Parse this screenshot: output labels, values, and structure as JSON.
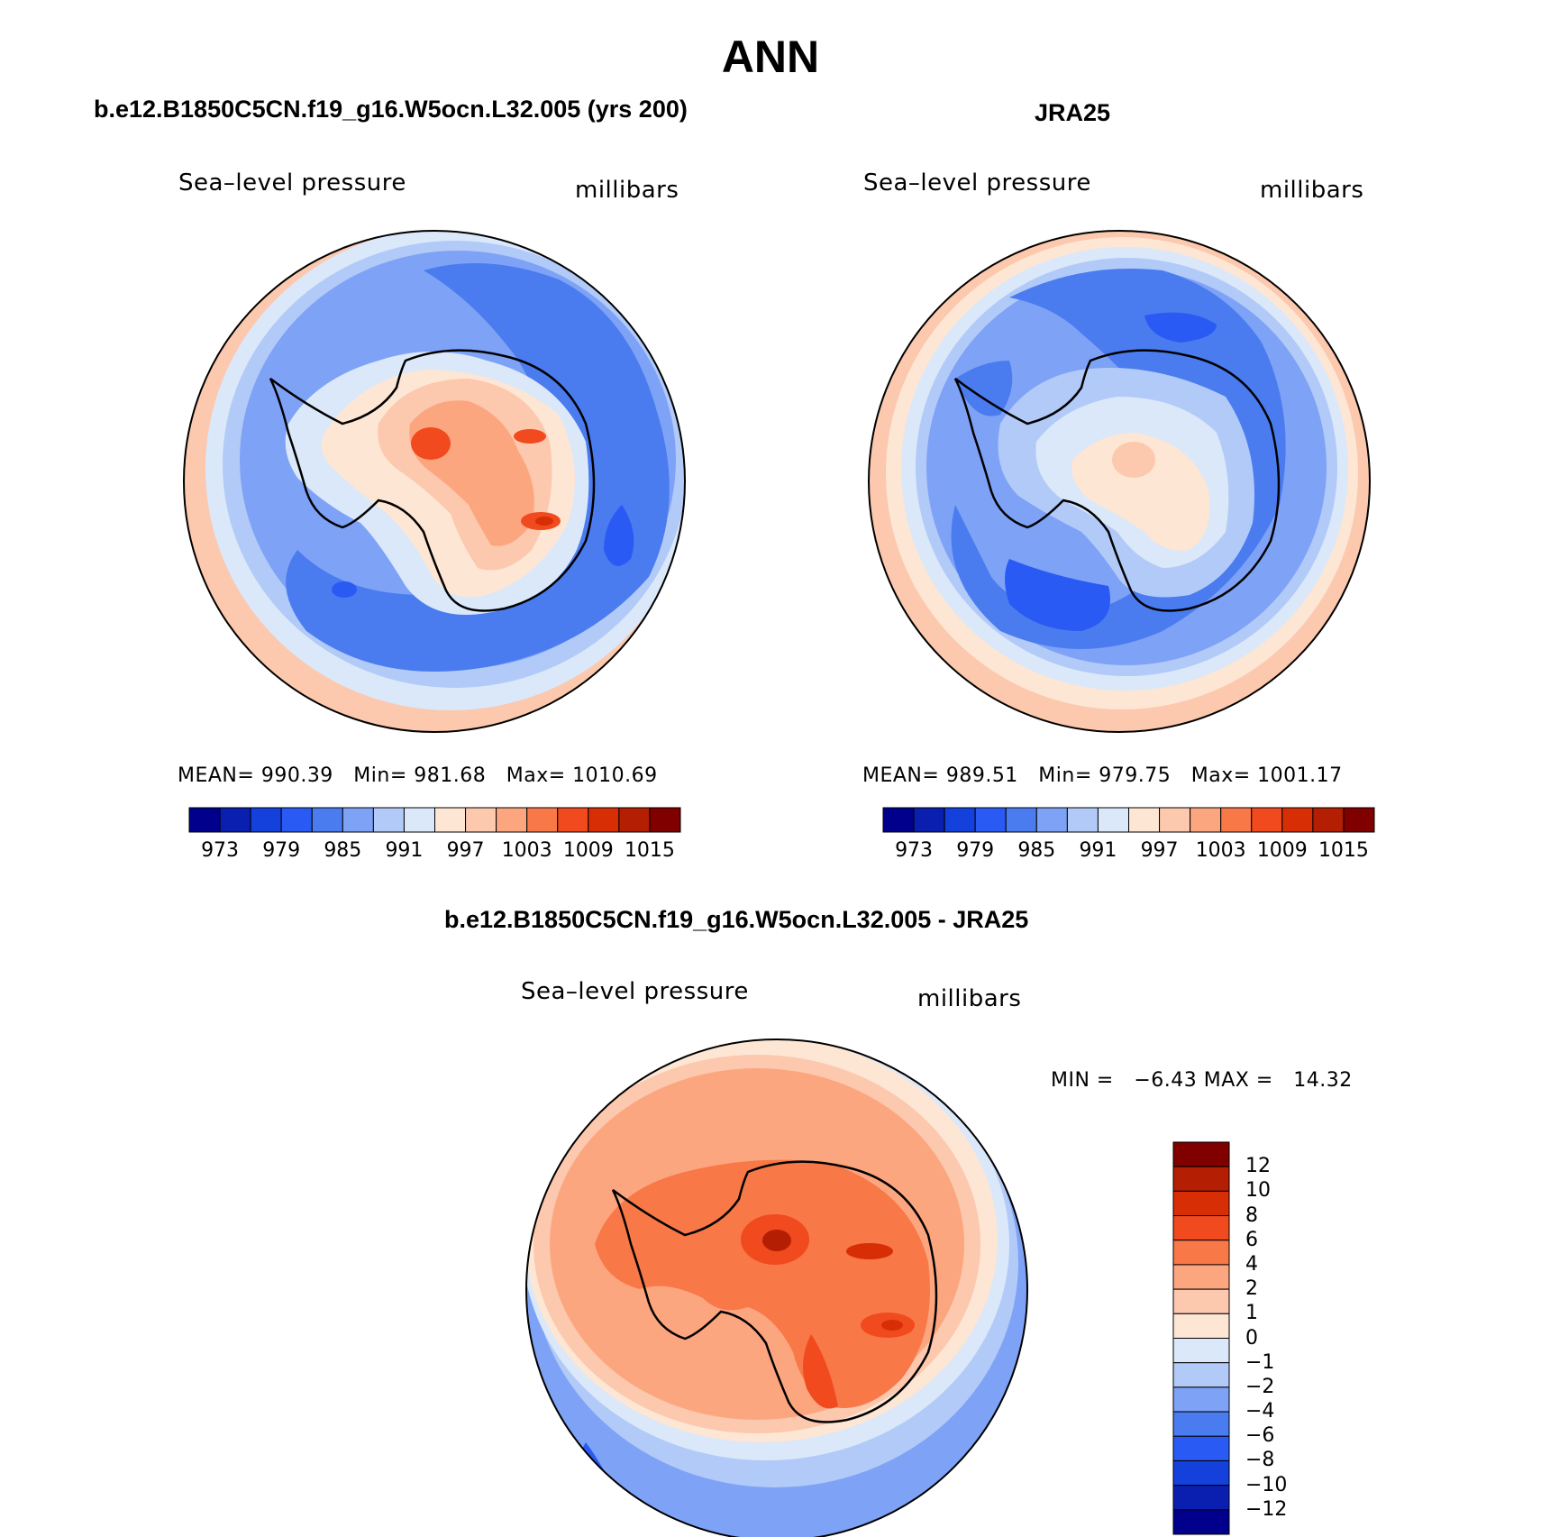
{
  "title": "ANN",
  "panels": [
    {
      "id": "model",
      "case_title": "b.e12.B1850C5CN.f19_g16.W5ocn.L32.005 (yrs 200)",
      "variable": "Sea–level pressure",
      "units": "millibars",
      "stats": {
        "mean_label": "MEAN=",
        "mean": "990.39",
        "min_label": "Min=",
        "min": "981.68",
        "max_label": "Max=",
        "max": "1010.69"
      }
    },
    {
      "id": "obs",
      "case_title": "JRA25",
      "variable": "Sea–level pressure",
      "units": "millibars",
      "stats": {
        "mean_label": "MEAN=",
        "mean": "989.51",
        "min_label": "Min=",
        "min": "979.75",
        "max_label": "Max=",
        "max": "1001.17"
      }
    },
    {
      "id": "diff",
      "case_title": "b.e12.B1850C5CN.f19_g16.W5ocn.L32.005 - JRA25",
      "variable": "Sea–level pressure",
      "units": "millibars",
      "stats": {
        "min_label": "MIN =",
        "min": "−6.43",
        "max_label": "MAX =",
        "max": "14.32"
      }
    }
  ],
  "abs_colorbar": {
    "colors": [
      "#00008c",
      "#0a1eaf",
      "#1440dc",
      "#2a5af4",
      "#4a7cf0",
      "#7ea2f6",
      "#b2caf8",
      "#dae8fa",
      "#fde6d4",
      "#fcc8ae",
      "#fca680",
      "#f87848",
      "#f04a1e",
      "#d82e06",
      "#b41e02",
      "#800000"
    ],
    "ticks": [
      "973",
      "979",
      "985",
      "991",
      "997",
      "1003",
      "1009",
      "1015"
    ]
  },
  "diff_colorbar": {
    "colors": [
      "#00008c",
      "#0a1eaf",
      "#1440dc",
      "#2a5af4",
      "#4a7cf0",
      "#7ea2f6",
      "#b2caf8",
      "#dae8fa",
      "#fde6d4",
      "#fcc8ae",
      "#fca680",
      "#f87848",
      "#f04a1e",
      "#d82e06",
      "#b41e02",
      "#800000"
    ],
    "ticks": [
      "12",
      "10",
      "8",
      "6",
      "4",
      "2",
      "1",
      "0",
      "−1",
      "−2",
      "−4",
      "−6",
      "−8",
      "−10",
      "−12"
    ]
  }
}
